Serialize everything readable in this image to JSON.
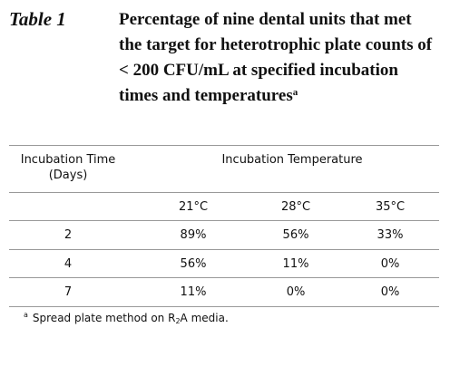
{
  "table_label": "Table 1",
  "title": "Percentage of nine dental units that met the target for heterotrophic plate counts of < 200 CFU/mL at specified incubation times and temperatures",
  "title_note_marker": "a",
  "table": {
    "header": [
      "Incubation Time (Days)",
      "Incubation Temperature"
    ],
    "subheader": [
      "21°C",
      "28°C",
      "35°C"
    ],
    "rows": [
      [
        "2",
        "89%",
        "56%",
        "33%"
      ],
      [
        "4",
        "56%",
        "11%",
        "0%"
      ],
      [
        "7",
        "11%",
        "0%",
        "0%"
      ]
    ]
  },
  "footnote": {
    "marker": "a",
    "text_before": "Spread  plate method on R",
    "subscript": "2",
    "text_after": "A media."
  }
}
